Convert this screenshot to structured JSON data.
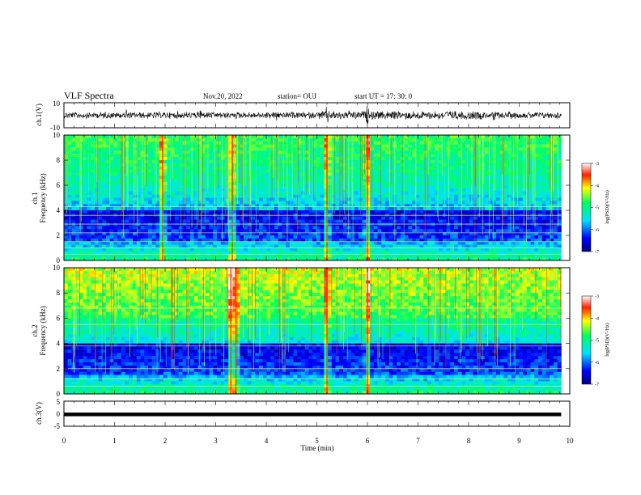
{
  "header": {
    "title": "VLF Spectra",
    "date": "Nov.20, 2022",
    "station": "station= OUJ",
    "start": "start  UT =   17: 30: 0"
  },
  "chart_data": [
    {
      "type": "line",
      "name": "waveform-ch1",
      "ylabel": "ch.1(V)",
      "ylim": [
        -10,
        10
      ],
      "yticks": [
        "10",
        "-10"
      ],
      "xlim": [
        0,
        10
      ],
      "note": "dense noise trace around 0 V with spikes near 2.7, 4.2, 5.2 and 6.0 min"
    },
    {
      "type": "heatmap",
      "name": "spectrogram-ch1",
      "ylabel_top": "ch.1",
      "ylabel": "Frequency  (kHz)",
      "ylim": [
        0,
        10
      ],
      "yticks": [
        "0",
        "2",
        "4",
        "6",
        "8",
        "10"
      ],
      "xlim": [
        0,
        10
      ],
      "data_end_min": 9.83,
      "colorbar": {
        "label": "log(PSD)(V²/Hz)",
        "ticks": [
          "-3",
          "-4",
          "-5",
          "-6",
          "-7"
        ],
        "range": [
          -7,
          -3
        ]
      },
      "bright_vertical_bursts_min": [
        1.95,
        3.33,
        5.2,
        6.0
      ],
      "horizontal_lines_khz": [
        0.5,
        1.0,
        1.5,
        2.2,
        2.9,
        3.6,
        4.3
      ]
    },
    {
      "type": "heatmap",
      "name": "spectrogram-ch2",
      "ylabel_top": "ch.2",
      "ylabel": "Frequency  (kHz)",
      "ylim": [
        0,
        10
      ],
      "yticks": [
        "0",
        "2",
        "4",
        "6",
        "8",
        "10"
      ],
      "xlim": [
        0,
        10
      ],
      "data_end_min": 9.83,
      "colorbar": {
        "label": "log(PSD)(V²/Hz)",
        "ticks": [
          "-3",
          "-4",
          "-5",
          "-6",
          "-7"
        ],
        "range": [
          -7,
          -3
        ]
      },
      "bright_vertical_bursts_min": [
        3.3,
        3.4,
        5.2,
        6.0
      ],
      "horizontal_lines_khz": [
        0.6,
        1.2,
        2.0,
        3.8,
        5.5,
        6.8
      ]
    },
    {
      "type": "line",
      "name": "waveform-ch3",
      "ylabel": "ch.3(V)",
      "ylim": [
        -5,
        5
      ],
      "yticks": [
        "5",
        "0",
        "-5"
      ],
      "xlim": [
        0,
        10
      ],
      "x": [
        0,
        9.83
      ],
      "y": [
        -0.3,
        -0.3
      ]
    }
  ],
  "xaxis": {
    "label": "Time  (min)",
    "ticks": [
      "0",
      "1",
      "2",
      "3",
      "4",
      "5",
      "6",
      "7",
      "8",
      "9",
      "10"
    ]
  }
}
